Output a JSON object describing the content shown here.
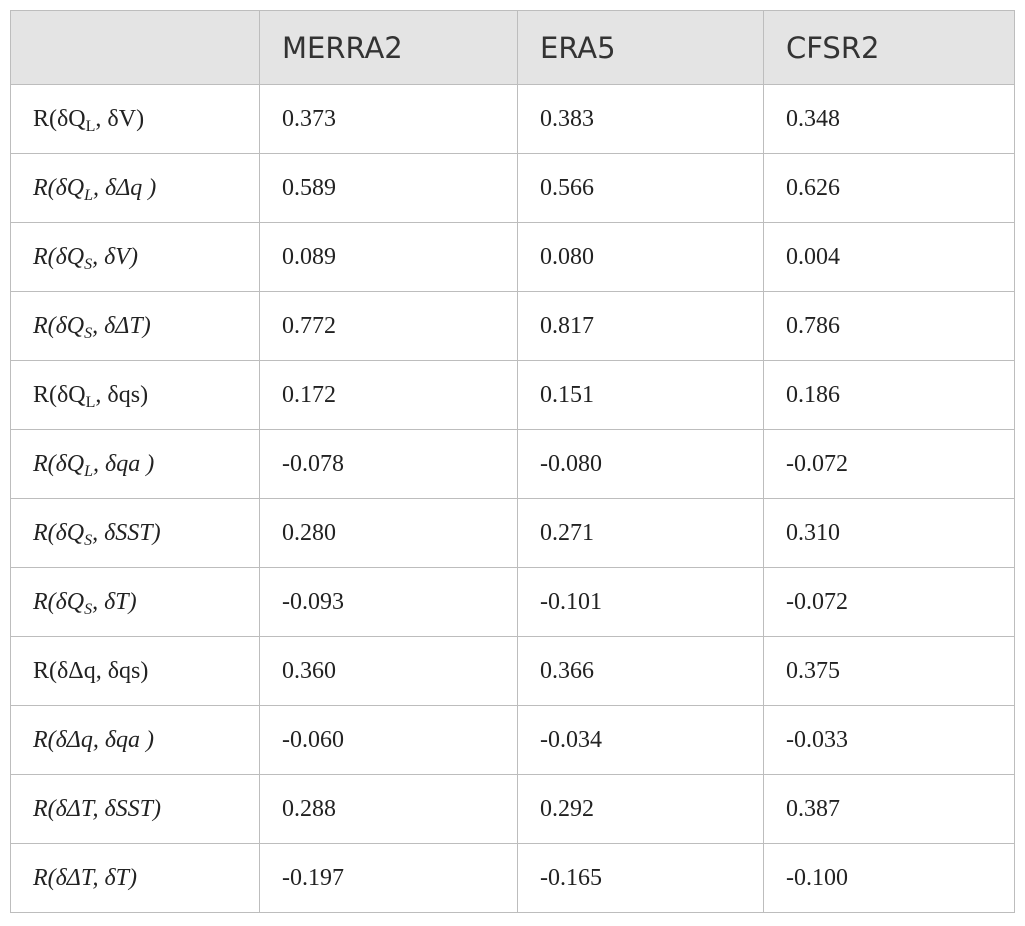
{
  "table": {
    "header": [
      "MERRA2",
      "ERA5",
      "CFSR2"
    ],
    "rows": [
      {
        "label": {
          "text": "R(δQ",
          "sub": "L",
          "tail": ", δV)"
        },
        "italic": false,
        "cells": [
          "0.373",
          "0.383",
          "0.348"
        ]
      },
      {
        "label": {
          "text": "R(δQ",
          "sub": "L",
          "tail": ", δΔq )"
        },
        "italic": true,
        "cells": [
          "0.589",
          "0.566",
          "0.626"
        ]
      },
      {
        "label": {
          "text": "R(δQ",
          "sub": "S",
          "tail": ", δV)"
        },
        "italic": true,
        "cells": [
          "0.089",
          "0.080",
          "0.004"
        ]
      },
      {
        "label": {
          "text": "R(δQ",
          "sub": "S",
          "tail": ", δΔT)"
        },
        "italic": true,
        "cells": [
          "0.772",
          "0.817",
          "0.786"
        ]
      },
      {
        "label": {
          "text": "R(δQ",
          "sub": "L",
          "tail": ", δqs)"
        },
        "italic": false,
        "cells": [
          "0.172",
          "0.151",
          "0.186"
        ]
      },
      {
        "label": {
          "text": "R(δQ",
          "sub": "L",
          "tail": ", δqa )"
        },
        "italic": true,
        "cells": [
          "-0.078",
          "-0.080",
          "-0.072"
        ]
      },
      {
        "label": {
          "text": "R(δQ",
          "sub": "S",
          "tail": ", δSST)"
        },
        "italic": true,
        "cells": [
          "0.280",
          "0.271",
          "0.310"
        ]
      },
      {
        "label": {
          "text": "R(δQ",
          "sub": "S",
          "tail": ", δT)"
        },
        "italic": true,
        "cells": [
          "-0.093",
          "-0.101",
          "-0.072"
        ]
      },
      {
        "label": {
          "text": "R(δΔq, δqs)"
        },
        "italic": false,
        "cells": [
          "0.360",
          "0.366",
          "0.375"
        ]
      },
      {
        "label": {
          "text": "R(δΔq, δqa )"
        },
        "italic": true,
        "cells": [
          "-0.060",
          "-0.034",
          "-0.033"
        ]
      },
      {
        "label": {
          "text": "R(δΔT, δSST)"
        },
        "italic": true,
        "cells": [
          "0.288",
          "0.292",
          "0.387"
        ]
      },
      {
        "label": {
          "text": "R(δΔT, δT)"
        },
        "italic": true,
        "cells": [
          "-0.197",
          "-0.165",
          "-0.100"
        ]
      }
    ]
  }
}
